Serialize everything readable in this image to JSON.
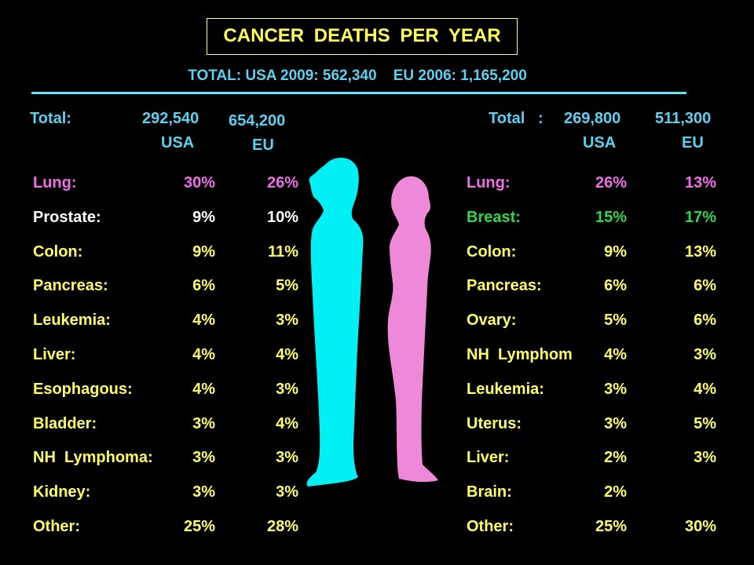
{
  "title": "CANCER  DEATHS  PER  YEAR",
  "subtitle": "TOTAL: USA 2009: 562,340    EU 2006: 1,165,200",
  "colors": {
    "lung": "#ef6fe8",
    "breast": "#2fd84a",
    "default_male": "#ffffff",
    "rows": "#ffff66",
    "header": "#5cd2f2",
    "male_figure": "#00f0f4",
    "female_figure": "#ee88d8"
  },
  "male": {
    "total_label": "Total:",
    "usa_total": "292,540",
    "usa_label": "USA",
    "eu_total": "654,200",
    "eu_label": "EU",
    "rows": [
      {
        "label": "Lung:",
        "usa": "30%",
        "eu": "26%",
        "color": "#ef6fe8"
      },
      {
        "label": "Prostate:",
        "usa": "9%",
        "eu": "10%",
        "color": "#ffffff"
      },
      {
        "label": "Colon:",
        "usa": "9%",
        "eu": "11%",
        "color": "#ffff66"
      },
      {
        "label": "Pancreas:",
        "usa": "6%",
        "eu": "5%",
        "color": "#ffff66"
      },
      {
        "label": "Leukemia:",
        "usa": "4%",
        "eu": "3%",
        "color": "#ffff66"
      },
      {
        "label": "Liver:",
        "usa": "4%",
        "eu": "4%",
        "color": "#ffff66"
      },
      {
        "label": "Esophagous:",
        "usa": "4%",
        "eu": "3%",
        "color": "#ffff66"
      },
      {
        "label": "Bladder:",
        "usa": "3%",
        "eu": "4%",
        "color": "#ffff66"
      },
      {
        "label": "NH  Lymphoma:",
        "usa": "3%",
        "eu": "3%",
        "color": "#ffff66"
      },
      {
        "label": "Kidney:",
        "usa": "3%",
        "eu": "3%",
        "color": "#ffff66"
      },
      {
        "label": "Other:",
        "usa": "25%",
        "eu": "28%",
        "color": "#ffff66"
      }
    ]
  },
  "female": {
    "total_label": "Total   :",
    "usa_total": "269,800",
    "usa_label": "USA",
    "eu_total": "511,300",
    "eu_label": "EU",
    "rows": [
      {
        "label": "Lung:",
        "usa": "26%",
        "eu": "13%",
        "color": "#ef6fe8"
      },
      {
        "label": "Breast:",
        "usa": "15%",
        "eu": "17%",
        "color": "#2fd84a"
      },
      {
        "label": "Colon:",
        "usa": "9%",
        "eu": "13%",
        "color": "#ffff66"
      },
      {
        "label": "Pancreas:",
        "usa": "6%",
        "eu": "6%",
        "color": "#ffff66"
      },
      {
        "label": "Ovary:",
        "usa": "5%",
        "eu": "6%",
        "color": "#ffff66"
      },
      {
        "label": "NH  Lymphom",
        "usa": "4%",
        "eu": "3%",
        "color": "#ffff66"
      },
      {
        "label": "Leukemia:",
        "usa": "3%",
        "eu": "4%",
        "color": "#ffff66"
      },
      {
        "label": "Uterus:",
        "usa": "3%",
        "eu": "5%",
        "color": "#ffff66"
      },
      {
        "label": "Liver:",
        "usa": "2%",
        "eu": "3%",
        "color": "#ffff66"
      },
      {
        "label": "Brain:",
        "usa": "2%",
        "eu": "",
        "color": "#ffff66"
      },
      {
        "label": "Other:",
        "usa": "25%",
        "eu": "30%",
        "color": "#ffff66"
      }
    ]
  }
}
